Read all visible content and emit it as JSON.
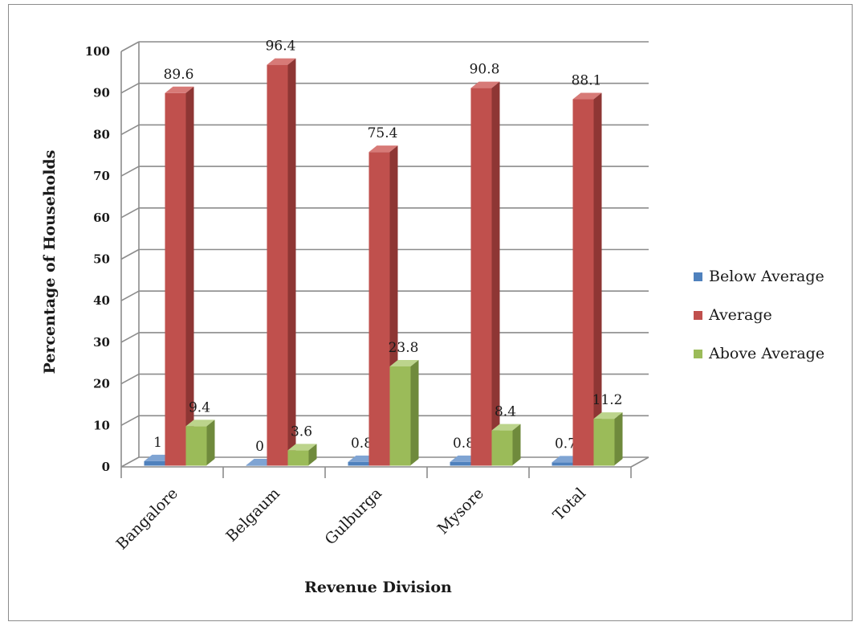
{
  "chart_data": {
    "type": "bar",
    "style": "3d-clustered-column",
    "categories": [
      "Bangalore",
      "Belgaum",
      "Gulburga",
      "Mysore",
      "Total"
    ],
    "series": [
      {
        "name": "Below Average",
        "values": [
          1,
          0,
          0.8,
          0.8,
          0.7
        ],
        "labels": [
          "1",
          "0",
          "0.8",
          "0.8",
          "0.7"
        ],
        "color": "#4f81bd",
        "side": "#3a6391",
        "top": "#7fa4d3"
      },
      {
        "name": "Average",
        "values": [
          89.6,
          96.4,
          75.4,
          90.8,
          88.1
        ],
        "labels": [
          "89.6",
          "96.4",
          "75.4",
          "90.8",
          "88.1"
        ],
        "color": "#c0504d",
        "side": "#8e3634",
        "top": "#d77a77"
      },
      {
        "name": "Above Average",
        "values": [
          9.4,
          3.6,
          23.8,
          8.4,
          11.2
        ],
        "labels": [
          "9.4",
          "3.6",
          "23.8",
          "8.4",
          "11.2"
        ],
        "color": "#9bbb59",
        "side": "#6f8a3c",
        "top": "#bcd48c"
      }
    ],
    "yticks": [
      "0",
      "10",
      "20",
      "30",
      "40",
      "50",
      "60",
      "70",
      "80",
      "90",
      "100"
    ],
    "ylim": [
      0,
      100
    ],
    "xlabel": "Revenue Division",
    "ylabel": "Percentage of Households",
    "grid": true,
    "legend_position": "right"
  }
}
